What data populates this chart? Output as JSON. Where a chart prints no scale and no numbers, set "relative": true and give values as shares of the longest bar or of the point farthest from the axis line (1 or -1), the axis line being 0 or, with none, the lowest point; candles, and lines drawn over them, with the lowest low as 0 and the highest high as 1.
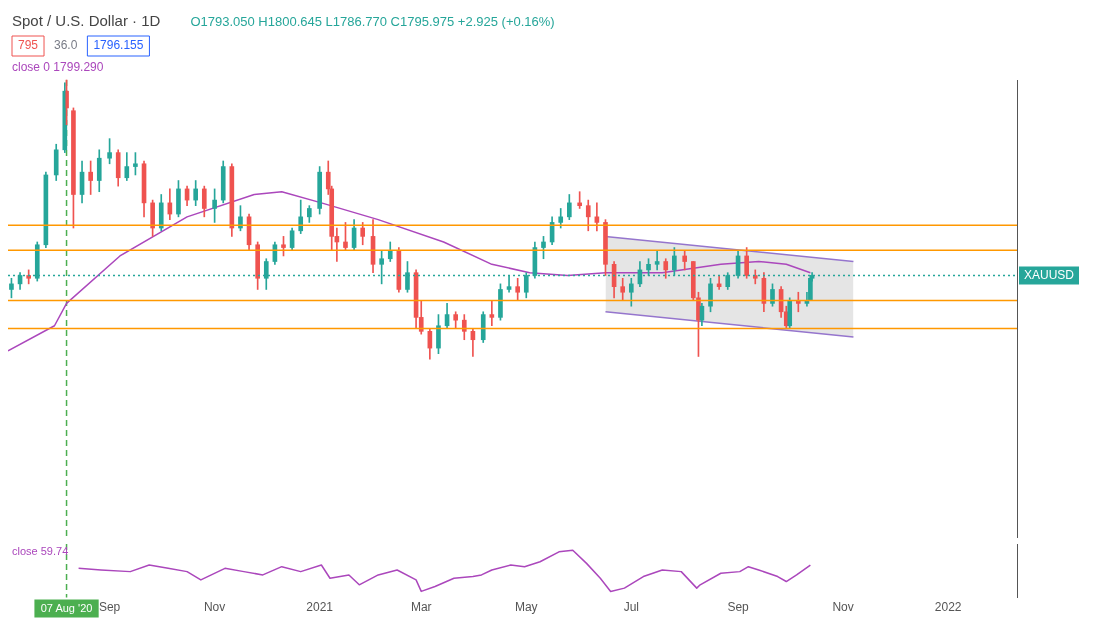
{
  "chart_data": [
    {
      "type": "candlestick",
      "relative": true,
      "title": "Spot / U.S. Dollar · 1D",
      "annotations": [
        "O1793.050 H1800.645 L1786.770 C1795.975 +2.925 (+0.16%)",
        "795",
        "36.0",
        "1796.155",
        "close 0 1799.290"
      ],
      "x": [
        "2020-07-06",
        "2020-07-11",
        "2020-07-16",
        "2020-07-21",
        "2020-07-26",
        "2020-08-01",
        "2020-08-06",
        "2020-08-07",
        "2020-08-11",
        "2020-08-16",
        "2020-08-21",
        "2020-08-26",
        "2020-09-01",
        "2020-09-06",
        "2020-09-11",
        "2020-09-16",
        "2020-09-21",
        "2020-09-26",
        "2020-10-01",
        "2020-10-06",
        "2020-10-11",
        "2020-10-16",
        "2020-10-21",
        "2020-10-26",
        "2020-11-01",
        "2020-11-06",
        "2020-11-11",
        "2020-11-16",
        "2020-11-21",
        "2020-11-26",
        "2020-12-01",
        "2020-12-06",
        "2020-12-11",
        "2020-12-16",
        "2020-12-21",
        "2020-12-26",
        "2021-01-01",
        "2021-01-06",
        "2021-01-08",
        "2021-01-11",
        "2021-01-16",
        "2021-01-21",
        "2021-01-26",
        "2021-02-01",
        "2021-02-06",
        "2021-02-11",
        "2021-02-16",
        "2021-02-21",
        "2021-02-26",
        "2021-03-01",
        "2021-03-06",
        "2021-03-11",
        "2021-03-16",
        "2021-03-21",
        "2021-03-26",
        "2021-03-31",
        "2021-04-06",
        "2021-04-11",
        "2021-04-16",
        "2021-04-21",
        "2021-04-26",
        "2021-05-01",
        "2021-05-06",
        "2021-05-11",
        "2021-05-16",
        "2021-05-21",
        "2021-05-26",
        "2021-06-01",
        "2021-06-06",
        "2021-06-11",
        "2021-06-16",
        "2021-06-21",
        "2021-06-26",
        "2021-07-01",
        "2021-07-06",
        "2021-07-11",
        "2021-07-16",
        "2021-07-21",
        "2021-07-26",
        "2021-08-01",
        "2021-08-06",
        "2021-08-09",
        "2021-08-11",
        "2021-08-16",
        "2021-08-21",
        "2021-08-26",
        "2021-09-01",
        "2021-09-06",
        "2021-09-11",
        "2021-09-16",
        "2021-09-21",
        "2021-09-26",
        "2021-09-29",
        "2021-10-01",
        "2021-10-06",
        "2021-10-11",
        "2021-10-13",
        "2021-10-14"
      ],
      "ohlc": [
        [
          0.25,
          0.29,
          0.22,
          0.27
        ],
        [
          0.27,
          0.31,
          0.25,
          0.3
        ],
        [
          0.3,
          0.32,
          0.27,
          0.29
        ],
        [
          0.29,
          0.42,
          0.28,
          0.41
        ],
        [
          0.41,
          0.67,
          0.4,
          0.66
        ],
        [
          0.66,
          0.77,
          0.64,
          0.75
        ],
        [
          0.75,
          0.99,
          0.74,
          0.96
        ],
        [
          0.96,
          1,
          0.84,
          0.9
        ],
        [
          0.89,
          0.9,
          0.47,
          0.59
        ],
        [
          0.59,
          0.71,
          0.56,
          0.67
        ],
        [
          0.67,
          0.71,
          0.59,
          0.64
        ],
        [
          0.64,
          0.75,
          0.6,
          0.72
        ],
        [
          0.72,
          0.79,
          0.7,
          0.74
        ],
        [
          0.74,
          0.75,
          0.62,
          0.65
        ],
        [
          0.65,
          0.74,
          0.64,
          0.69
        ],
        [
          0.69,
          0.74,
          0.66,
          0.7
        ],
        [
          0.7,
          0.71,
          0.51,
          0.56
        ],
        [
          0.56,
          0.57,
          0.44,
          0.47
        ],
        [
          0.47,
          0.59,
          0.46,
          0.56
        ],
        [
          0.56,
          0.61,
          0.5,
          0.52
        ],
        [
          0.52,
          0.64,
          0.51,
          0.61
        ],
        [
          0.61,
          0.62,
          0.55,
          0.57
        ],
        [
          0.57,
          0.64,
          0.55,
          0.61
        ],
        [
          0.61,
          0.62,
          0.51,
          0.54
        ],
        [
          0.54,
          0.61,
          0.49,
          0.57
        ],
        [
          0.57,
          0.71,
          0.56,
          0.69
        ],
        [
          0.69,
          0.7,
          0.44,
          0.47
        ],
        [
          0.47,
          0.55,
          0.46,
          0.51
        ],
        [
          0.51,
          0.52,
          0.39,
          0.41
        ],
        [
          0.41,
          0.42,
          0.25,
          0.29
        ],
        [
          0.29,
          0.36,
          0.25,
          0.35
        ],
        [
          0.35,
          0.42,
          0.34,
          0.41
        ],
        [
          0.41,
          0.44,
          0.37,
          0.4
        ],
        [
          0.4,
          0.47,
          0.39,
          0.46
        ],
        [
          0.46,
          0.57,
          0.45,
          0.51
        ],
        [
          0.51,
          0.55,
          0.49,
          0.54
        ],
        [
          0.54,
          0.69,
          0.52,
          0.67
        ],
        [
          0.67,
          0.71,
          0.59,
          0.61
        ],
        [
          0.61,
          0.62,
          0.39,
          0.44
        ],
        [
          0.44,
          0.47,
          0.35,
          0.42
        ],
        [
          0.42,
          0.49,
          0.39,
          0.4
        ],
        [
          0.4,
          0.5,
          0.39,
          0.47
        ],
        [
          0.47,
          0.49,
          0.41,
          0.44
        ],
        [
          0.44,
          0.5,
          0.31,
          0.34
        ],
        [
          0.34,
          0.39,
          0.27,
          0.36
        ],
        [
          0.36,
          0.42,
          0.35,
          0.39
        ],
        [
          0.39,
          0.4,
          0.24,
          0.25
        ],
        [
          0.25,
          0.35,
          0.24,
          0.31
        ],
        [
          0.31,
          0.32,
          0.11,
          0.15
        ],
        [
          0.15,
          0.21,
          0.09,
          0.1
        ],
        [
          0.1,
          0.11,
          0,
          0.04
        ],
        [
          0.04,
          0.16,
          0.02,
          0.12
        ],
        [
          0.12,
          0.2,
          0.11,
          0.16
        ],
        [
          0.16,
          0.17,
          0.11,
          0.14
        ],
        [
          0.14,
          0.16,
          0.07,
          0.1
        ],
        [
          0.1,
          0.11,
          0.01,
          0.07
        ],
        [
          0.07,
          0.17,
          0.06,
          0.16
        ],
        [
          0.16,
          0.21,
          0.12,
          0.15
        ],
        [
          0.15,
          0.27,
          0.14,
          0.25
        ],
        [
          0.25,
          0.3,
          0.24,
          0.26
        ],
        [
          0.26,
          0.29,
          0.21,
          0.24
        ],
        [
          0.24,
          0.31,
          0.22,
          0.3
        ],
        [
          0.3,
          0.42,
          0.29,
          0.4
        ],
        [
          0.4,
          0.44,
          0.36,
          0.42
        ],
        [
          0.42,
          0.51,
          0.41,
          0.49
        ],
        [
          0.49,
          0.54,
          0.47,
          0.51
        ],
        [
          0.51,
          0.59,
          0.5,
          0.56
        ],
        [
          0.56,
          0.6,
          0.54,
          0.55
        ],
        [
          0.55,
          0.57,
          0.46,
          0.51
        ],
        [
          0.51,
          0.56,
          0.46,
          0.49
        ],
        [
          0.49,
          0.5,
          0.3,
          0.34
        ],
        [
          0.34,
          0.35,
          0.22,
          0.26
        ],
        [
          0.26,
          0.29,
          0.21,
          0.24
        ],
        [
          0.24,
          0.29,
          0.19,
          0.27
        ],
        [
          0.27,
          0.35,
          0.26,
          0.32
        ],
        [
          0.32,
          0.36,
          0.3,
          0.34
        ],
        [
          0.34,
          0.39,
          0.32,
          0.35
        ],
        [
          0.35,
          0.36,
          0.29,
          0.32
        ],
        [
          0.32,
          0.4,
          0.3,
          0.37
        ],
        [
          0.37,
          0.39,
          0.32,
          0.35
        ],
        [
          0.35,
          0.35,
          0.21,
          0.22
        ],
        [
          0.22,
          0.24,
          0.01,
          0.14
        ],
        [
          0.14,
          0.2,
          0.12,
          0.19
        ],
        [
          0.19,
          0.29,
          0.17,
          0.27
        ],
        [
          0.27,
          0.3,
          0.25,
          0.26
        ],
        [
          0.26,
          0.31,
          0.25,
          0.3
        ],
        [
          0.3,
          0.39,
          0.29,
          0.37
        ],
        [
          0.37,
          0.4,
          0.29,
          0.3
        ],
        [
          0.3,
          0.32,
          0.27,
          0.29
        ],
        [
          0.29,
          0.31,
          0.17,
          0.2
        ],
        [
          0.2,
          0.27,
          0.19,
          0.25
        ],
        [
          0.25,
          0.26,
          0.15,
          0.17
        ],
        [
          0.17,
          0.19,
          0.11,
          0.12
        ],
        [
          0.12,
          0.22,
          0.11,
          0.21
        ],
        [
          0.21,
          0.24,
          0.17,
          0.2
        ],
        [
          0.2,
          0.24,
          0.19,
          0.21
        ],
        [
          0.21,
          0.3,
          0.21,
          0.29
        ],
        [
          0.29,
          0.31,
          0.28,
          0.3
        ]
      ],
      "colors": [
        "#26a69a",
        "#26a69a",
        "#ef5350",
        "#26a69a",
        "#26a69a",
        "#26a69a",
        "#26a69a",
        "#ef5350",
        "#ef5350",
        "#26a69a",
        "#ef5350",
        "#26a69a",
        "#26a69a",
        "#ef5350",
        "#26a69a",
        "#26a69a",
        "#ef5350",
        "#ef5350",
        "#26a69a",
        "#ef5350",
        "#26a69a",
        "#ef5350",
        "#26a69a",
        "#ef5350",
        "#26a69a",
        "#26a69a",
        "#ef5350",
        "#26a69a",
        "#ef5350",
        "#ef5350",
        "#26a69a",
        "#26a69a",
        "#ef5350",
        "#26a69a",
        "#26a69a",
        "#26a69a",
        "#26a69a",
        "#ef5350",
        "#ef5350",
        "#ef5350",
        "#ef5350",
        "#26a69a",
        "#ef5350",
        "#ef5350",
        "#26a69a",
        "#26a69a",
        "#ef5350",
        "#26a69a",
        "#ef5350",
        "#ef5350",
        "#ef5350",
        "#26a69a",
        "#26a69a",
        "#ef5350",
        "#ef5350",
        "#ef5350",
        "#26a69a",
        "#ef5350",
        "#26a69a",
        "#26a69a",
        "#ef5350",
        "#26a69a",
        "#26a69a",
        "#26a69a",
        "#26a69a",
        "#26a69a",
        "#26a69a",
        "#ef5350",
        "#ef5350",
        "#ef5350",
        "#ef5350",
        "#ef5350",
        "#ef5350",
        "#26a69a",
        "#26a69a",
        "#26a69a",
        "#26a69a",
        "#ef5350",
        "#26a69a",
        "#ef5350",
        "#ef5350",
        "#ef5350",
        "#26a69a",
        "#26a69a",
        "#ef5350",
        "#26a69a",
        "#26a69a",
        "#ef5350",
        "#ef5350",
        "#ef5350",
        "#26a69a",
        "#ef5350",
        "#ef5350",
        "#26a69a",
        "#ef5350",
        "#26a69a",
        "#26a69a",
        "#26a69a"
      ],
      "series": [
        {
          "type": "line",
          "color": "#ab47bc",
          "x": [
            "2020-07-04",
            "2020-07-31",
            "2020-08-07",
            "2020-09-07",
            "2020-10-16",
            "2020-11-24",
            "2020-12-10",
            "2021-01-02",
            "2021-02-04",
            "2021-03-14",
            "2021-04-11",
            "2021-05-03",
            "2021-05-25",
            "2021-06-16",
            "2021-07-19",
            "2021-08-22",
            "2021-09-13",
            "2021-09-29",
            "2021-10-13"
          ],
          "values": [
            0.03,
            0.12,
            0.2,
            0.37,
            0.51,
            0.59,
            0.6,
            0.56,
            0.5,
            0.42,
            0.34,
            0.31,
            0.3,
            0.31,
            0.31,
            0.34,
            0.35,
            0.34,
            0.31
          ]
        },
        {
          "type": "line",
          "color": "#9575cd",
          "x": [
            "2021-06-16",
            "2021-11-07"
          ],
          "values": [
            0.44,
            0.35
          ]
        },
        {
          "type": "line",
          "color": "#9575cd",
          "x": [
            "2021-06-16",
            "2021-11-07"
          ],
          "values": [
            0.17,
            0.08
          ]
        },
        {
          "type": "line",
          "color": "#b4b4b4",
          "x": [
            "2021-06-16",
            "2021-11-07"
          ],
          "values": [
            null,
            null
          ],
          "upper": [
            0.44,
            0.35
          ],
          "lower": [
            0.17,
            0.08
          ]
        }
      ],
      "xlim": [
        "2020-07-04",
        "2022-02-10"
      ],
      "tick_labels": false,
      "grid": false,
      "legend": false,
      "ref_lines": [
        {
          "axis": "y",
          "value": 0.48,
          "color": "#ff9800"
        },
        {
          "axis": "y",
          "value": 0.39,
          "color": "#ff9800"
        },
        {
          "axis": "y",
          "value": 0.3,
          "label": "XAUUSD",
          "color": "#26a69a",
          "line_style": "dotted"
        },
        {
          "axis": "y",
          "value": 0.21,
          "color": "#ff9800"
        },
        {
          "axis": "y",
          "value": 0.11,
          "color": "#ff9800"
        },
        {
          "axis": "x",
          "value": "2020-08-07",
          "color": "#4caf50",
          "line_style": "dashed"
        }
      ]
    },
    {
      "type": "line",
      "relative": true,
      "color": "#ab47bc",
      "annotations": [
        "close 59.74"
      ],
      "x": [
        "2020-08-14",
        "2020-08-27",
        "2020-09-13",
        "2020-09-24",
        "2020-10-05",
        "2020-10-16",
        "2020-10-24",
        "2020-11-07",
        "2020-11-18",
        "2020-11-29",
        "2020-12-10",
        "2020-12-21",
        "2021-01-02",
        "2021-01-07",
        "2021-01-18",
        "2021-01-24",
        "2021-02-04",
        "2021-02-15",
        "2021-02-26",
        "2021-03-01",
        "2021-03-09",
        "2021-03-20",
        "2021-03-31",
        "2021-04-05",
        "2021-04-11",
        "2021-04-22",
        "2021-04-30",
        "2021-05-09",
        "2021-05-20",
        "2021-05-28",
        "2021-06-05",
        "2021-06-13",
        "2021-06-19",
        "2021-06-27",
        "2021-07-08",
        "2021-07-19",
        "2021-07-30",
        "2021-08-08",
        "2021-08-10",
        "2021-08-22",
        "2021-09-02",
        "2021-09-07",
        "2021-09-13",
        "2021-09-24",
        "2021-09-29",
        "2021-10-05",
        "2021-10-13"
      ],
      "values": [
        0.56,
        0.52,
        0.48,
        0.64,
        0.56,
        0.48,
        0.28,
        0.56,
        0.48,
        0.4,
        0.6,
        0.48,
        0.64,
        0.32,
        0.4,
        0.16,
        0.4,
        0.52,
        0.28,
        0,
        0.12,
        0.32,
        0.36,
        0.4,
        0.52,
        0.64,
        0.6,
        0.72,
        0.96,
        1,
        0.68,
        0.32,
        0,
        0.08,
        0.36,
        0.52,
        0.48,
        0.08,
        0.16,
        0.44,
        0.48,
        0.6,
        0.52,
        0.36,
        0.24,
        0.4,
        0.64
      ],
      "xlim": [
        "2020-07-04",
        "2022-02-10"
      ],
      "xticks": [
        {
          "value": "2020-09-01",
          "label": "Sep"
        },
        {
          "value": "2020-11-01",
          "label": "Nov"
        },
        {
          "value": "2021-01-01",
          "label": "2021"
        },
        {
          "value": "2021-03-01",
          "label": "Mar"
        },
        {
          "value": "2021-05-01",
          "label": "May"
        },
        {
          "value": "2021-07-01",
          "label": "Jul"
        },
        {
          "value": "2021-09-01",
          "label": "Sep"
        },
        {
          "value": "2021-11-01",
          "label": "Nov"
        },
        {
          "value": "2022-01-01",
          "label": "2022"
        }
      ],
      "tick_labels": "x",
      "grid": false,
      "legend": false,
      "ref_lines": [
        {
          "axis": "x",
          "value": "2020-08-07",
          "label": "07 Aug '20",
          "color": "#4caf50",
          "line_style": "dashed"
        }
      ]
    }
  ]
}
